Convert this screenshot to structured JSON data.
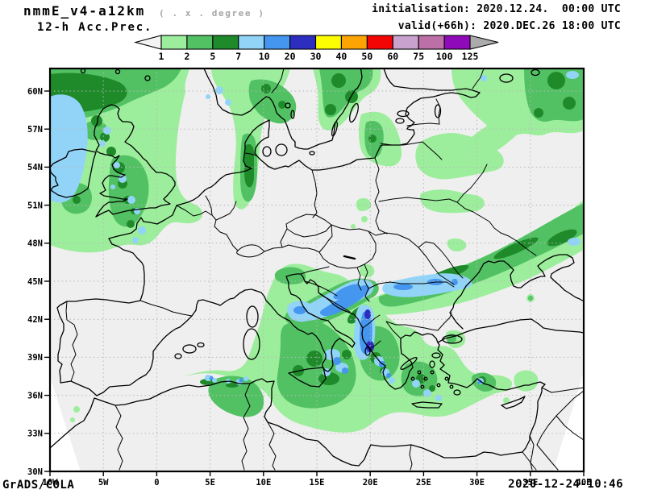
{
  "header": {
    "model_title": "nmmE_v4-a12km",
    "grid_note": "( . x . degree )",
    "product": "12-h Acc.Prec.",
    "init_line": "initialisation: 2020.12.24.  00:00 UTC",
    "valid_line": "valid(+66h): 2020.DEC.26 18:00 UTC"
  },
  "colorbar": {
    "tick_labels": [
      "1",
      "2",
      "5",
      "7",
      "10",
      "20",
      "30",
      "40",
      "50",
      "60",
      "75",
      "100",
      "125"
    ],
    "segment_colors": [
      "#9cee9c",
      "#52c163",
      "#1f8a2a",
      "#92d4f8",
      "#4496ee",
      "#2d2dc0",
      "#fcfc02",
      "#fca502",
      "#f40505",
      "#c9a2cd",
      "#bd6fa8",
      "#8f0ab8"
    ],
    "underflow_color": "#f3f3f3",
    "overflow_color": "#ababab"
  },
  "map": {
    "background_color": "#efefef",
    "lat_ticks": [
      "60N",
      "57N",
      "54N",
      "51N",
      "48N",
      "45N",
      "42N",
      "39N",
      "36N",
      "33N",
      "30N"
    ],
    "lon_ticks": [
      "10W",
      "5W",
      "0",
      "5E",
      "10E",
      "15E",
      "20E",
      "25E",
      "30E",
      "35E",
      "40E"
    ]
  },
  "palette": {
    "green1": "#9cee9c",
    "green2": "#52c163",
    "green3": "#1f8a2a",
    "blue1": "#92d4f8",
    "blue2": "#4496ee",
    "blue3": "#2d2dc0"
  },
  "footer": {
    "credit": "GrADS/COLA",
    "timestamp": "2020-12-24-10:46"
  }
}
